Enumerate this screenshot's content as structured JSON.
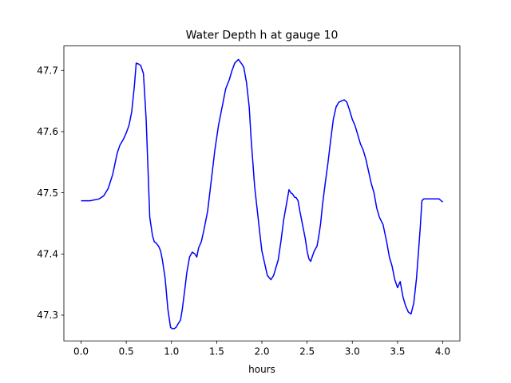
{
  "chart_data": {
    "type": "line",
    "title": "Water Depth h at gauge 10",
    "xlabel": "hours",
    "ylabel": "",
    "xlim": [
      -0.19,
      4.19
    ],
    "ylim": [
      47.258,
      47.74
    ],
    "xticks": [
      "0.0",
      "0.5",
      "1.0",
      "1.5",
      "2.0",
      "2.5",
      "3.0",
      "3.5",
      "4.0"
    ],
    "yticks": [
      "47.3",
      "47.4",
      "47.5",
      "47.6",
      "47.7"
    ],
    "grid": false,
    "series_color": "#0000ff",
    "series": [
      {
        "x": [
          0.0,
          0.1,
          0.2,
          0.25,
          0.3,
          0.35,
          0.4,
          0.43,
          0.47,
          0.5,
          0.53,
          0.56,
          0.59,
          0.61,
          0.63,
          0.66,
          0.69,
          0.72,
          0.74,
          0.76,
          0.79,
          0.81,
          0.83,
          0.86,
          0.88,
          0.9,
          0.93,
          0.96,
          0.99,
          1.01,
          1.03,
          1.05,
          1.07,
          1.1,
          1.12,
          1.15,
          1.17,
          1.2,
          1.23,
          1.26,
          1.28,
          1.3,
          1.33,
          1.36,
          1.4,
          1.44,
          1.48,
          1.52,
          1.56,
          1.6,
          1.64,
          1.67,
          1.7,
          1.74,
          1.78,
          1.8,
          1.83,
          1.86,
          1.88,
          1.9,
          1.92,
          1.95,
          1.98,
          2.0,
          2.03,
          2.06,
          2.1,
          2.13,
          2.16,
          2.18,
          2.21,
          2.24,
          2.27,
          2.3,
          2.32,
          2.34,
          2.36,
          2.38,
          2.4,
          2.42,
          2.44,
          2.46,
          2.48,
          2.5,
          2.52,
          2.54,
          2.56,
          2.58,
          2.61,
          2.63,
          2.65,
          2.67,
          2.7,
          2.73,
          2.76,
          2.79,
          2.82,
          2.85,
          2.88,
          2.91,
          2.94,
          2.97,
          3.0,
          3.03,
          3.06,
          3.09,
          3.12,
          3.15,
          3.18,
          3.21,
          3.24,
          3.27,
          3.3,
          3.34,
          3.38,
          3.41,
          3.44,
          3.47,
          3.5,
          3.53,
          3.56,
          3.59,
          3.62,
          3.65,
          3.68,
          3.71,
          3.73,
          3.75,
          3.77,
          3.79,
          3.81,
          3.84,
          3.87,
          3.9,
          3.93,
          3.96,
          4.0
        ],
        "y": [
          47.487,
          47.487,
          47.49,
          47.495,
          47.507,
          47.53,
          47.565,
          47.578,
          47.588,
          47.598,
          47.61,
          47.632,
          47.675,
          47.712,
          47.711,
          47.708,
          47.695,
          47.62,
          47.54,
          47.46,
          47.43,
          47.42,
          47.418,
          47.412,
          47.405,
          47.39,
          47.36,
          47.31,
          47.28,
          47.278,
          47.278,
          47.28,
          47.285,
          47.292,
          47.31,
          47.345,
          47.37,
          47.395,
          47.403,
          47.4,
          47.395,
          47.41,
          47.42,
          47.44,
          47.47,
          47.52,
          47.57,
          47.61,
          47.64,
          47.67,
          47.685,
          47.7,
          47.712,
          47.718,
          47.71,
          47.705,
          47.68,
          47.64,
          47.59,
          47.55,
          47.51,
          47.47,
          47.43,
          47.405,
          47.385,
          47.365,
          47.358,
          47.365,
          47.38,
          47.39,
          47.42,
          47.455,
          47.48,
          47.505,
          47.5,
          47.498,
          47.493,
          47.492,
          47.487,
          47.47,
          47.455,
          47.44,
          47.425,
          47.405,
          47.392,
          47.388,
          47.397,
          47.405,
          47.413,
          47.43,
          47.45,
          47.48,
          47.515,
          47.548,
          47.585,
          47.62,
          47.64,
          47.648,
          47.65,
          47.652,
          47.648,
          47.635,
          47.62,
          47.61,
          47.595,
          47.58,
          47.57,
          47.555,
          47.535,
          47.515,
          47.5,
          47.475,
          47.46,
          47.448,
          47.42,
          47.395,
          47.38,
          47.358,
          47.345,
          47.355,
          47.33,
          47.315,
          47.305,
          47.302,
          47.32,
          47.36,
          47.4,
          47.44,
          47.487,
          47.49,
          47.49,
          47.49,
          47.49,
          47.49,
          47.49,
          47.49,
          47.485
        ]
      }
    ]
  }
}
